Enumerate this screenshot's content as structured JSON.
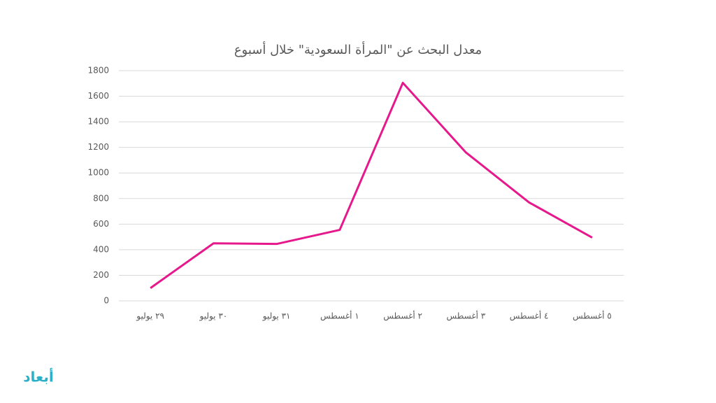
{
  "chart_data": {
    "type": "line",
    "title": "معدل البحث عن \"المرأة السعودية\" خلال أسبوع",
    "categories": [
      "٢٩ يوليو",
      "٣٠ يوليو",
      "٣١ يوليو",
      "١ أغسطس",
      "٢ أغسطس",
      "٣ أغسطس",
      "٤ أغسطس",
      "٥ أغسطس"
    ],
    "values": [
      100,
      450,
      445,
      555,
      1705,
      1160,
      770,
      495
    ],
    "color": "#e6198c",
    "ylim": [
      0,
      1800
    ],
    "yticks": [
      0,
      200,
      400,
      600,
      800,
      1000,
      1200,
      1400,
      1600,
      1800
    ],
    "grid": true
  },
  "logo": "أبعاد"
}
